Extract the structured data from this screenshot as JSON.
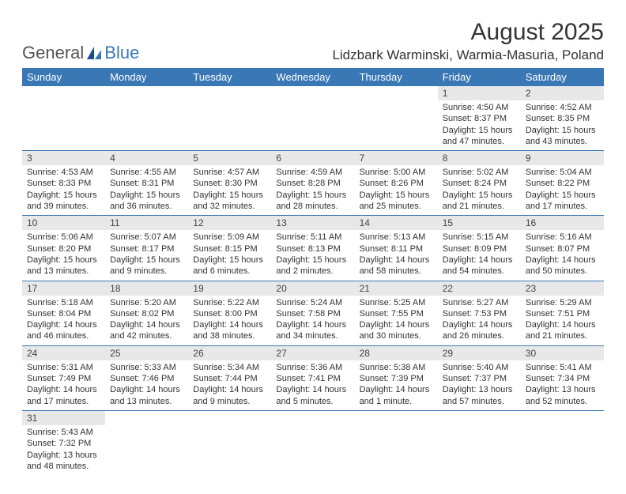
{
  "logo": {
    "text1": "General",
    "text2": "Blue"
  },
  "title": "August 2025",
  "location": "Lidzbark Warminski, Warmia-Masuria, Poland",
  "colors": {
    "header_bg": "#3a78b5",
    "header_text": "#ffffff",
    "daynum_bg": "#e8e8e8",
    "row_border": "#3a78b5",
    "page_bg": "#ffffff"
  },
  "weekdays": [
    "Sunday",
    "Monday",
    "Tuesday",
    "Wednesday",
    "Thursday",
    "Friday",
    "Saturday"
  ],
  "weeks": [
    [
      null,
      null,
      null,
      null,
      null,
      {
        "n": "1",
        "sr": "4:50 AM",
        "ss": "8:37 PM",
        "dl": "15 hours and 47 minutes."
      },
      {
        "n": "2",
        "sr": "4:52 AM",
        "ss": "8:35 PM",
        "dl": "15 hours and 43 minutes."
      }
    ],
    [
      {
        "n": "3",
        "sr": "4:53 AM",
        "ss": "8:33 PM",
        "dl": "15 hours and 39 minutes."
      },
      {
        "n": "4",
        "sr": "4:55 AM",
        "ss": "8:31 PM",
        "dl": "15 hours and 36 minutes."
      },
      {
        "n": "5",
        "sr": "4:57 AM",
        "ss": "8:30 PM",
        "dl": "15 hours and 32 minutes."
      },
      {
        "n": "6",
        "sr": "4:59 AM",
        "ss": "8:28 PM",
        "dl": "15 hours and 28 minutes."
      },
      {
        "n": "7",
        "sr": "5:00 AM",
        "ss": "8:26 PM",
        "dl": "15 hours and 25 minutes."
      },
      {
        "n": "8",
        "sr": "5:02 AM",
        "ss": "8:24 PM",
        "dl": "15 hours and 21 minutes."
      },
      {
        "n": "9",
        "sr": "5:04 AM",
        "ss": "8:22 PM",
        "dl": "15 hours and 17 minutes."
      }
    ],
    [
      {
        "n": "10",
        "sr": "5:06 AM",
        "ss": "8:20 PM",
        "dl": "15 hours and 13 minutes."
      },
      {
        "n": "11",
        "sr": "5:07 AM",
        "ss": "8:17 PM",
        "dl": "15 hours and 9 minutes."
      },
      {
        "n": "12",
        "sr": "5:09 AM",
        "ss": "8:15 PM",
        "dl": "15 hours and 6 minutes."
      },
      {
        "n": "13",
        "sr": "5:11 AM",
        "ss": "8:13 PM",
        "dl": "15 hours and 2 minutes."
      },
      {
        "n": "14",
        "sr": "5:13 AM",
        "ss": "8:11 PM",
        "dl": "14 hours and 58 minutes."
      },
      {
        "n": "15",
        "sr": "5:15 AM",
        "ss": "8:09 PM",
        "dl": "14 hours and 54 minutes."
      },
      {
        "n": "16",
        "sr": "5:16 AM",
        "ss": "8:07 PM",
        "dl": "14 hours and 50 minutes."
      }
    ],
    [
      {
        "n": "17",
        "sr": "5:18 AM",
        "ss": "8:04 PM",
        "dl": "14 hours and 46 minutes."
      },
      {
        "n": "18",
        "sr": "5:20 AM",
        "ss": "8:02 PM",
        "dl": "14 hours and 42 minutes."
      },
      {
        "n": "19",
        "sr": "5:22 AM",
        "ss": "8:00 PM",
        "dl": "14 hours and 38 minutes."
      },
      {
        "n": "20",
        "sr": "5:24 AM",
        "ss": "7:58 PM",
        "dl": "14 hours and 34 minutes."
      },
      {
        "n": "21",
        "sr": "5:25 AM",
        "ss": "7:55 PM",
        "dl": "14 hours and 30 minutes."
      },
      {
        "n": "22",
        "sr": "5:27 AM",
        "ss": "7:53 PM",
        "dl": "14 hours and 26 minutes."
      },
      {
        "n": "23",
        "sr": "5:29 AM",
        "ss": "7:51 PM",
        "dl": "14 hours and 21 minutes."
      }
    ],
    [
      {
        "n": "24",
        "sr": "5:31 AM",
        "ss": "7:49 PM",
        "dl": "14 hours and 17 minutes."
      },
      {
        "n": "25",
        "sr": "5:33 AM",
        "ss": "7:46 PM",
        "dl": "14 hours and 13 minutes."
      },
      {
        "n": "26",
        "sr": "5:34 AM",
        "ss": "7:44 PM",
        "dl": "14 hours and 9 minutes."
      },
      {
        "n": "27",
        "sr": "5:36 AM",
        "ss": "7:41 PM",
        "dl": "14 hours and 5 minutes."
      },
      {
        "n": "28",
        "sr": "5:38 AM",
        "ss": "7:39 PM",
        "dl": "14 hours and 1 minute."
      },
      {
        "n": "29",
        "sr": "5:40 AM",
        "ss": "7:37 PM",
        "dl": "13 hours and 57 minutes."
      },
      {
        "n": "30",
        "sr": "5:41 AM",
        "ss": "7:34 PM",
        "dl": "13 hours and 52 minutes."
      }
    ],
    [
      {
        "n": "31",
        "sr": "5:43 AM",
        "ss": "7:32 PM",
        "dl": "13 hours and 48 minutes."
      },
      null,
      null,
      null,
      null,
      null,
      null
    ]
  ],
  "labels": {
    "sunrise": "Sunrise:",
    "sunset": "Sunset:",
    "daylight": "Daylight:"
  }
}
